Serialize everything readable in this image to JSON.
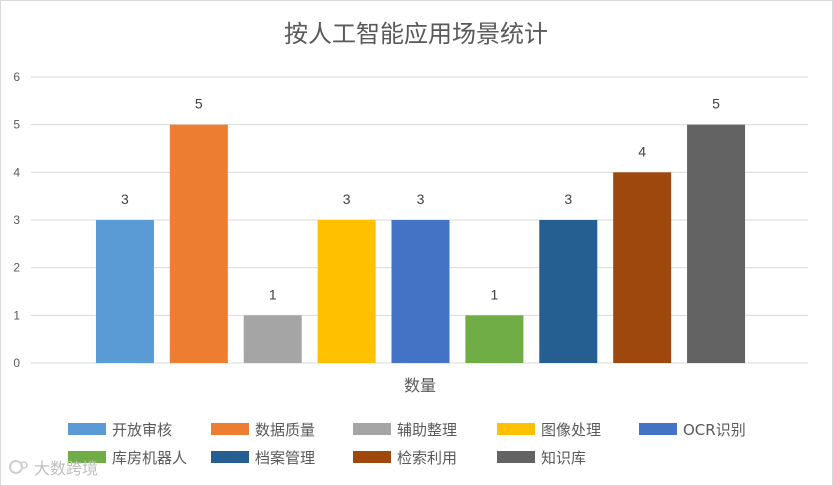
{
  "chart_data": {
    "type": "bar",
    "title": "按人工智能应用场景统计",
    "xlabel": "数量",
    "ylabel": "",
    "ylim": [
      0,
      6
    ],
    "yticks": [
      0,
      1,
      2,
      3,
      4,
      5,
      6
    ],
    "grid": true,
    "legend_position": "bottom",
    "categories": [
      "数量"
    ],
    "series": [
      {
        "name": "开放审核",
        "values": [
          3
        ],
        "color": "#5b9bd5"
      },
      {
        "name": "数据质量",
        "values": [
          5
        ],
        "color": "#ed7d31"
      },
      {
        "name": "辅助整理",
        "values": [
          1
        ],
        "color": "#a5a5a5"
      },
      {
        "name": "图像处理",
        "values": [
          3
        ],
        "color": "#ffc000"
      },
      {
        "name": "OCR识别",
        "values": [
          3
        ],
        "color": "#4472c4"
      },
      {
        "name": "库房机器人",
        "values": [
          1
        ],
        "color": "#70ad47"
      },
      {
        "name": "档案管理",
        "values": [
          3
        ],
        "color": "#255e91"
      },
      {
        "name": "检索利用",
        "values": [
          4
        ],
        "color": "#9e480e"
      },
      {
        "name": "知识库",
        "values": [
          5
        ],
        "color": "#636363"
      }
    ]
  },
  "watermark": "大数跨境"
}
